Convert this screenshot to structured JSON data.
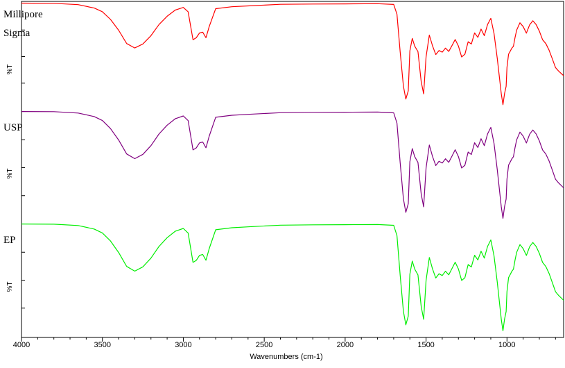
{
  "chart_data": {
    "type": "line",
    "xlabel": "Wavenumbers  (cm-1)",
    "ylabel": "%T",
    "xlim": [
      4000,
      650
    ],
    "x_reversed": true,
    "x_ticks": [
      4000,
      3500,
      3000,
      2500,
      2000,
      1500,
      1000
    ],
    "grid": false,
    "series": [
      {
        "name": "Millipore Sigma",
        "label_lines": [
          "Millipore",
          "Sigma"
        ],
        "color": "#ff0000",
        "x": [
          4000,
          3800,
          3650,
          3550,
          3500,
          3450,
          3400,
          3350,
          3300,
          3250,
          3200,
          3150,
          3100,
          3050,
          3000,
          2970,
          2940,
          2920,
          2900,
          2880,
          2860,
          2840,
          2800,
          2700,
          2600,
          2400,
          2200,
          2000,
          1800,
          1700,
          1680,
          1660,
          1640,
          1625,
          1610,
          1600,
          1585,
          1570,
          1550,
          1530,
          1515,
          1500,
          1480,
          1460,
          1440,
          1420,
          1400,
          1380,
          1360,
          1340,
          1320,
          1300,
          1280,
          1260,
          1240,
          1220,
          1200,
          1180,
          1160,
          1140,
          1120,
          1100,
          1080,
          1060,
          1045,
          1035,
          1025,
          1015,
          1005,
          1000,
          990,
          980,
          970,
          960,
          950,
          940,
          920,
          900,
          880,
          860,
          840,
          820,
          800,
          780,
          760,
          740,
          720,
          700,
          680,
          650
        ],
        "y": [
          100,
          100,
          99,
          96,
          92,
          85,
          75,
          62,
          58,
          62,
          70,
          80,
          88,
          94,
          96,
          92,
          66,
          68,
          72,
          73,
          68,
          78,
          95,
          97,
          98,
          99,
          99.5,
          99.8,
          99.5,
          99,
          90,
          55,
          22,
          10,
          18,
          55,
          67,
          60,
          55,
          26,
          15,
          50,
          70,
          60,
          52,
          56,
          54,
          58,
          55,
          60,
          66,
          60,
          50,
          52,
          64,
          62,
          72,
          68,
          76,
          70,
          80,
          86,
          72,
          48,
          28,
          15,
          5,
          15,
          22,
          40,
          52,
          55,
          58,
          60,
          68,
          75,
          82,
          78,
          72,
          80,
          84,
          80,
          74,
          66,
          62,
          56,
          48,
          40,
          36,
          32
        ]
      },
      {
        "name": "USP",
        "color": "#800080",
        "x": [
          4000,
          3800,
          3650,
          3550,
          3500,
          3450,
          3400,
          3350,
          3300,
          3250,
          3200,
          3150,
          3100,
          3050,
          3000,
          2970,
          2940,
          2920,
          2900,
          2880,
          2860,
          2840,
          2800,
          2700,
          2600,
          2400,
          2200,
          2000,
          1800,
          1700,
          1680,
          1660,
          1640,
          1625,
          1610,
          1600,
          1585,
          1570,
          1550,
          1530,
          1515,
          1500,
          1480,
          1460,
          1440,
          1420,
          1400,
          1380,
          1360,
          1340,
          1320,
          1300,
          1280,
          1260,
          1240,
          1220,
          1200,
          1180,
          1160,
          1140,
          1120,
          1100,
          1080,
          1060,
          1045,
          1035,
          1025,
          1015,
          1005,
          1000,
          990,
          980,
          970,
          960,
          950,
          940,
          920,
          900,
          880,
          860,
          840,
          820,
          800,
          780,
          760,
          740,
          720,
          700,
          680,
          650
        ],
        "y": [
          100,
          100,
          99,
          96,
          92,
          85,
          75,
          62,
          58,
          62,
          70,
          80,
          88,
          94,
          96,
          92,
          66,
          68,
          72,
          73,
          68,
          78,
          95,
          97,
          98,
          99,
          99.5,
          99.8,
          99.5,
          99,
          90,
          55,
          22,
          10,
          18,
          55,
          67,
          60,
          55,
          26,
          15,
          50,
          70,
          60,
          52,
          56,
          54,
          58,
          55,
          60,
          66,
          60,
          50,
          52,
          64,
          62,
          72,
          68,
          76,
          70,
          80,
          86,
          72,
          48,
          28,
          15,
          5,
          15,
          22,
          40,
          52,
          55,
          58,
          60,
          68,
          75,
          82,
          78,
          72,
          80,
          84,
          80,
          74,
          66,
          62,
          56,
          48,
          40,
          36,
          32
        ]
      },
      {
        "name": "EP",
        "color": "#00ee00",
        "x": [
          4000,
          3800,
          3650,
          3550,
          3500,
          3450,
          3400,
          3350,
          3300,
          3250,
          3200,
          3150,
          3100,
          3050,
          3000,
          2970,
          2940,
          2920,
          2900,
          2880,
          2860,
          2840,
          2800,
          2700,
          2600,
          2400,
          2200,
          2000,
          1800,
          1700,
          1680,
          1660,
          1640,
          1625,
          1610,
          1600,
          1585,
          1570,
          1550,
          1530,
          1515,
          1500,
          1480,
          1460,
          1440,
          1420,
          1400,
          1380,
          1360,
          1340,
          1320,
          1300,
          1280,
          1260,
          1240,
          1220,
          1200,
          1180,
          1160,
          1140,
          1120,
          1100,
          1080,
          1060,
          1045,
          1035,
          1025,
          1015,
          1005,
          1000,
          990,
          980,
          970,
          960,
          950,
          940,
          920,
          900,
          880,
          860,
          840,
          820,
          800,
          780,
          760,
          740,
          720,
          700,
          680,
          650
        ],
        "y": [
          100,
          100,
          99,
          96,
          92,
          85,
          75,
          62,
          58,
          62,
          70,
          80,
          88,
          94,
          96,
          92,
          66,
          68,
          72,
          73,
          68,
          78,
          95,
          97,
          98,
          99,
          99.5,
          99.8,
          99.5,
          99,
          90,
          55,
          22,
          10,
          18,
          55,
          67,
          60,
          55,
          26,
          15,
          50,
          70,
          60,
          52,
          56,
          54,
          58,
          55,
          60,
          66,
          60,
          50,
          52,
          64,
          62,
          72,
          68,
          76,
          70,
          80,
          86,
          72,
          48,
          28,
          15,
          5,
          15,
          22,
          40,
          52,
          55,
          58,
          60,
          68,
          75,
          82,
          78,
          72,
          80,
          84,
          80,
          74,
          66,
          62,
          56,
          48,
          40,
          36,
          32
        ]
      }
    ]
  }
}
